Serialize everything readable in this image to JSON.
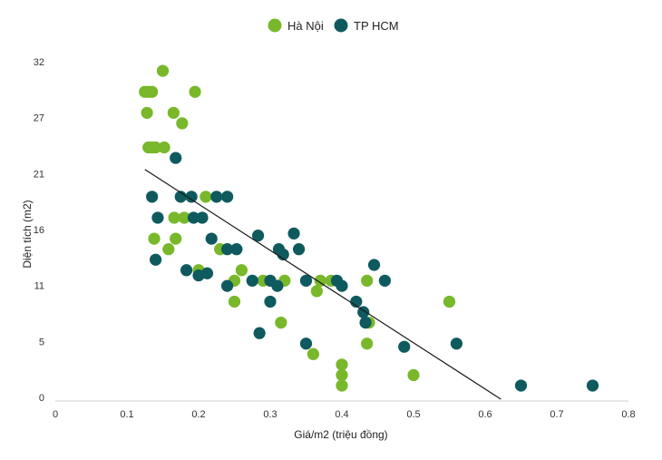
{
  "chart_data": {
    "type": "scatter",
    "xlabel": "Giá/m2 (triệu đồng)",
    "ylabel": "Diện tích (m2)",
    "xlim": [
      0,
      0.8
    ],
    "ylim": [
      0,
      32
    ],
    "x_ticks": [
      {
        "value": 0,
        "label": "0"
      },
      {
        "value": 0.1,
        "label": "0.1"
      },
      {
        "value": 0.2,
        "label": "0.2"
      },
      {
        "value": 0.3,
        "label": "0.3"
      },
      {
        "value": 0.4,
        "label": "0.4"
      },
      {
        "value": 0.5,
        "label": "0.5"
      },
      {
        "value": 0.6,
        "label": "0.6"
      },
      {
        "value": 0.7,
        "label": "0.7"
      },
      {
        "value": 0.8,
        "label": "0.8"
      }
    ],
    "y_ticks": [
      {
        "value": 0,
        "label": "0"
      },
      {
        "value": 5.33,
        "label": "5"
      },
      {
        "value": 10.67,
        "label": "11"
      },
      {
        "value": 16,
        "label": "16"
      },
      {
        "value": 21.33,
        "label": "21"
      },
      {
        "value": 26.67,
        "label": "27"
      },
      {
        "value": 32,
        "label": "32"
      }
    ],
    "grid": false,
    "legend_position": "top-center",
    "trendline": {
      "x": [
        0.125,
        0.622
      ],
      "y": [
        21.9,
        0
      ]
    },
    "series": [
      {
        "name": "Hà Nội",
        "color": "#78b82a",
        "points": [
          {
            "x": 0.125,
            "y": 29.3
          },
          {
            "x": 0.128,
            "y": 27.3
          },
          {
            "x": 0.13,
            "y": 29.3
          },
          {
            "x": 0.135,
            "y": 29.3
          },
          {
            "x": 0.15,
            "y": 31.3
          },
          {
            "x": 0.13,
            "y": 24.0
          },
          {
            "x": 0.135,
            "y": 24.0
          },
          {
            "x": 0.14,
            "y": 24.0
          },
          {
            "x": 0.152,
            "y": 24.0
          },
          {
            "x": 0.165,
            "y": 27.3
          },
          {
            "x": 0.177,
            "y": 26.3
          },
          {
            "x": 0.195,
            "y": 29.3
          },
          {
            "x": 0.21,
            "y": 19.3
          },
          {
            "x": 0.166,
            "y": 17.3
          },
          {
            "x": 0.18,
            "y": 17.3
          },
          {
            "x": 0.138,
            "y": 15.3
          },
          {
            "x": 0.168,
            "y": 15.3
          },
          {
            "x": 0.158,
            "y": 14.3
          },
          {
            "x": 0.2,
            "y": 12.3
          },
          {
            "x": 0.23,
            "y": 14.3
          },
          {
            "x": 0.25,
            "y": 11.3
          },
          {
            "x": 0.26,
            "y": 12.3
          },
          {
            "x": 0.25,
            "y": 9.3
          },
          {
            "x": 0.29,
            "y": 11.3
          },
          {
            "x": 0.32,
            "y": 11.3
          },
          {
            "x": 0.315,
            "y": 7.3
          },
          {
            "x": 0.36,
            "y": 4.3
          },
          {
            "x": 0.37,
            "y": 11.3
          },
          {
            "x": 0.365,
            "y": 10.3
          },
          {
            "x": 0.385,
            "y": 11.3
          },
          {
            "x": 0.4,
            "y": 3.3
          },
          {
            "x": 0.4,
            "y": 2.3
          },
          {
            "x": 0.4,
            "y": 1.3
          },
          {
            "x": 0.435,
            "y": 11.3
          },
          {
            "x": 0.438,
            "y": 7.3
          },
          {
            "x": 0.435,
            "y": 5.3
          },
          {
            "x": 0.5,
            "y": 2.3
          },
          {
            "x": 0.55,
            "y": 9.3
          }
        ]
      },
      {
        "name": "TP HCM",
        "color": "#0f5a5e",
        "points": [
          {
            "x": 0.168,
            "y": 23.0
          },
          {
            "x": 0.135,
            "y": 19.3
          },
          {
            "x": 0.175,
            "y": 19.3
          },
          {
            "x": 0.19,
            "y": 19.3
          },
          {
            "x": 0.225,
            "y": 19.3
          },
          {
            "x": 0.24,
            "y": 19.3
          },
          {
            "x": 0.143,
            "y": 17.3
          },
          {
            "x": 0.193,
            "y": 17.3
          },
          {
            "x": 0.205,
            "y": 17.3
          },
          {
            "x": 0.14,
            "y": 13.3
          },
          {
            "x": 0.183,
            "y": 12.3
          },
          {
            "x": 0.2,
            "y": 11.8
          },
          {
            "x": 0.212,
            "y": 12.0
          },
          {
            "x": 0.218,
            "y": 15.3
          },
          {
            "x": 0.24,
            "y": 14.3
          },
          {
            "x": 0.253,
            "y": 14.3
          },
          {
            "x": 0.24,
            "y": 10.8
          },
          {
            "x": 0.275,
            "y": 11.3
          },
          {
            "x": 0.283,
            "y": 15.6
          },
          {
            "x": 0.285,
            "y": 6.3
          },
          {
            "x": 0.3,
            "y": 11.3
          },
          {
            "x": 0.3,
            "y": 9.3
          },
          {
            "x": 0.31,
            "y": 10.8
          },
          {
            "x": 0.312,
            "y": 14.3
          },
          {
            "x": 0.318,
            "y": 13.8
          },
          {
            "x": 0.333,
            "y": 15.8
          },
          {
            "x": 0.34,
            "y": 14.3
          },
          {
            "x": 0.35,
            "y": 11.3
          },
          {
            "x": 0.35,
            "y": 5.3
          },
          {
            "x": 0.393,
            "y": 11.3
          },
          {
            "x": 0.4,
            "y": 10.8
          },
          {
            "x": 0.42,
            "y": 9.3
          },
          {
            "x": 0.43,
            "y": 8.3
          },
          {
            "x": 0.433,
            "y": 7.3
          },
          {
            "x": 0.445,
            "y": 12.8
          },
          {
            "x": 0.46,
            "y": 11.3
          },
          {
            "x": 0.487,
            "y": 5.0
          },
          {
            "x": 0.56,
            "y": 5.3
          },
          {
            "x": 0.65,
            "y": 1.3
          },
          {
            "x": 0.75,
            "y": 1.3
          }
        ]
      }
    ]
  }
}
